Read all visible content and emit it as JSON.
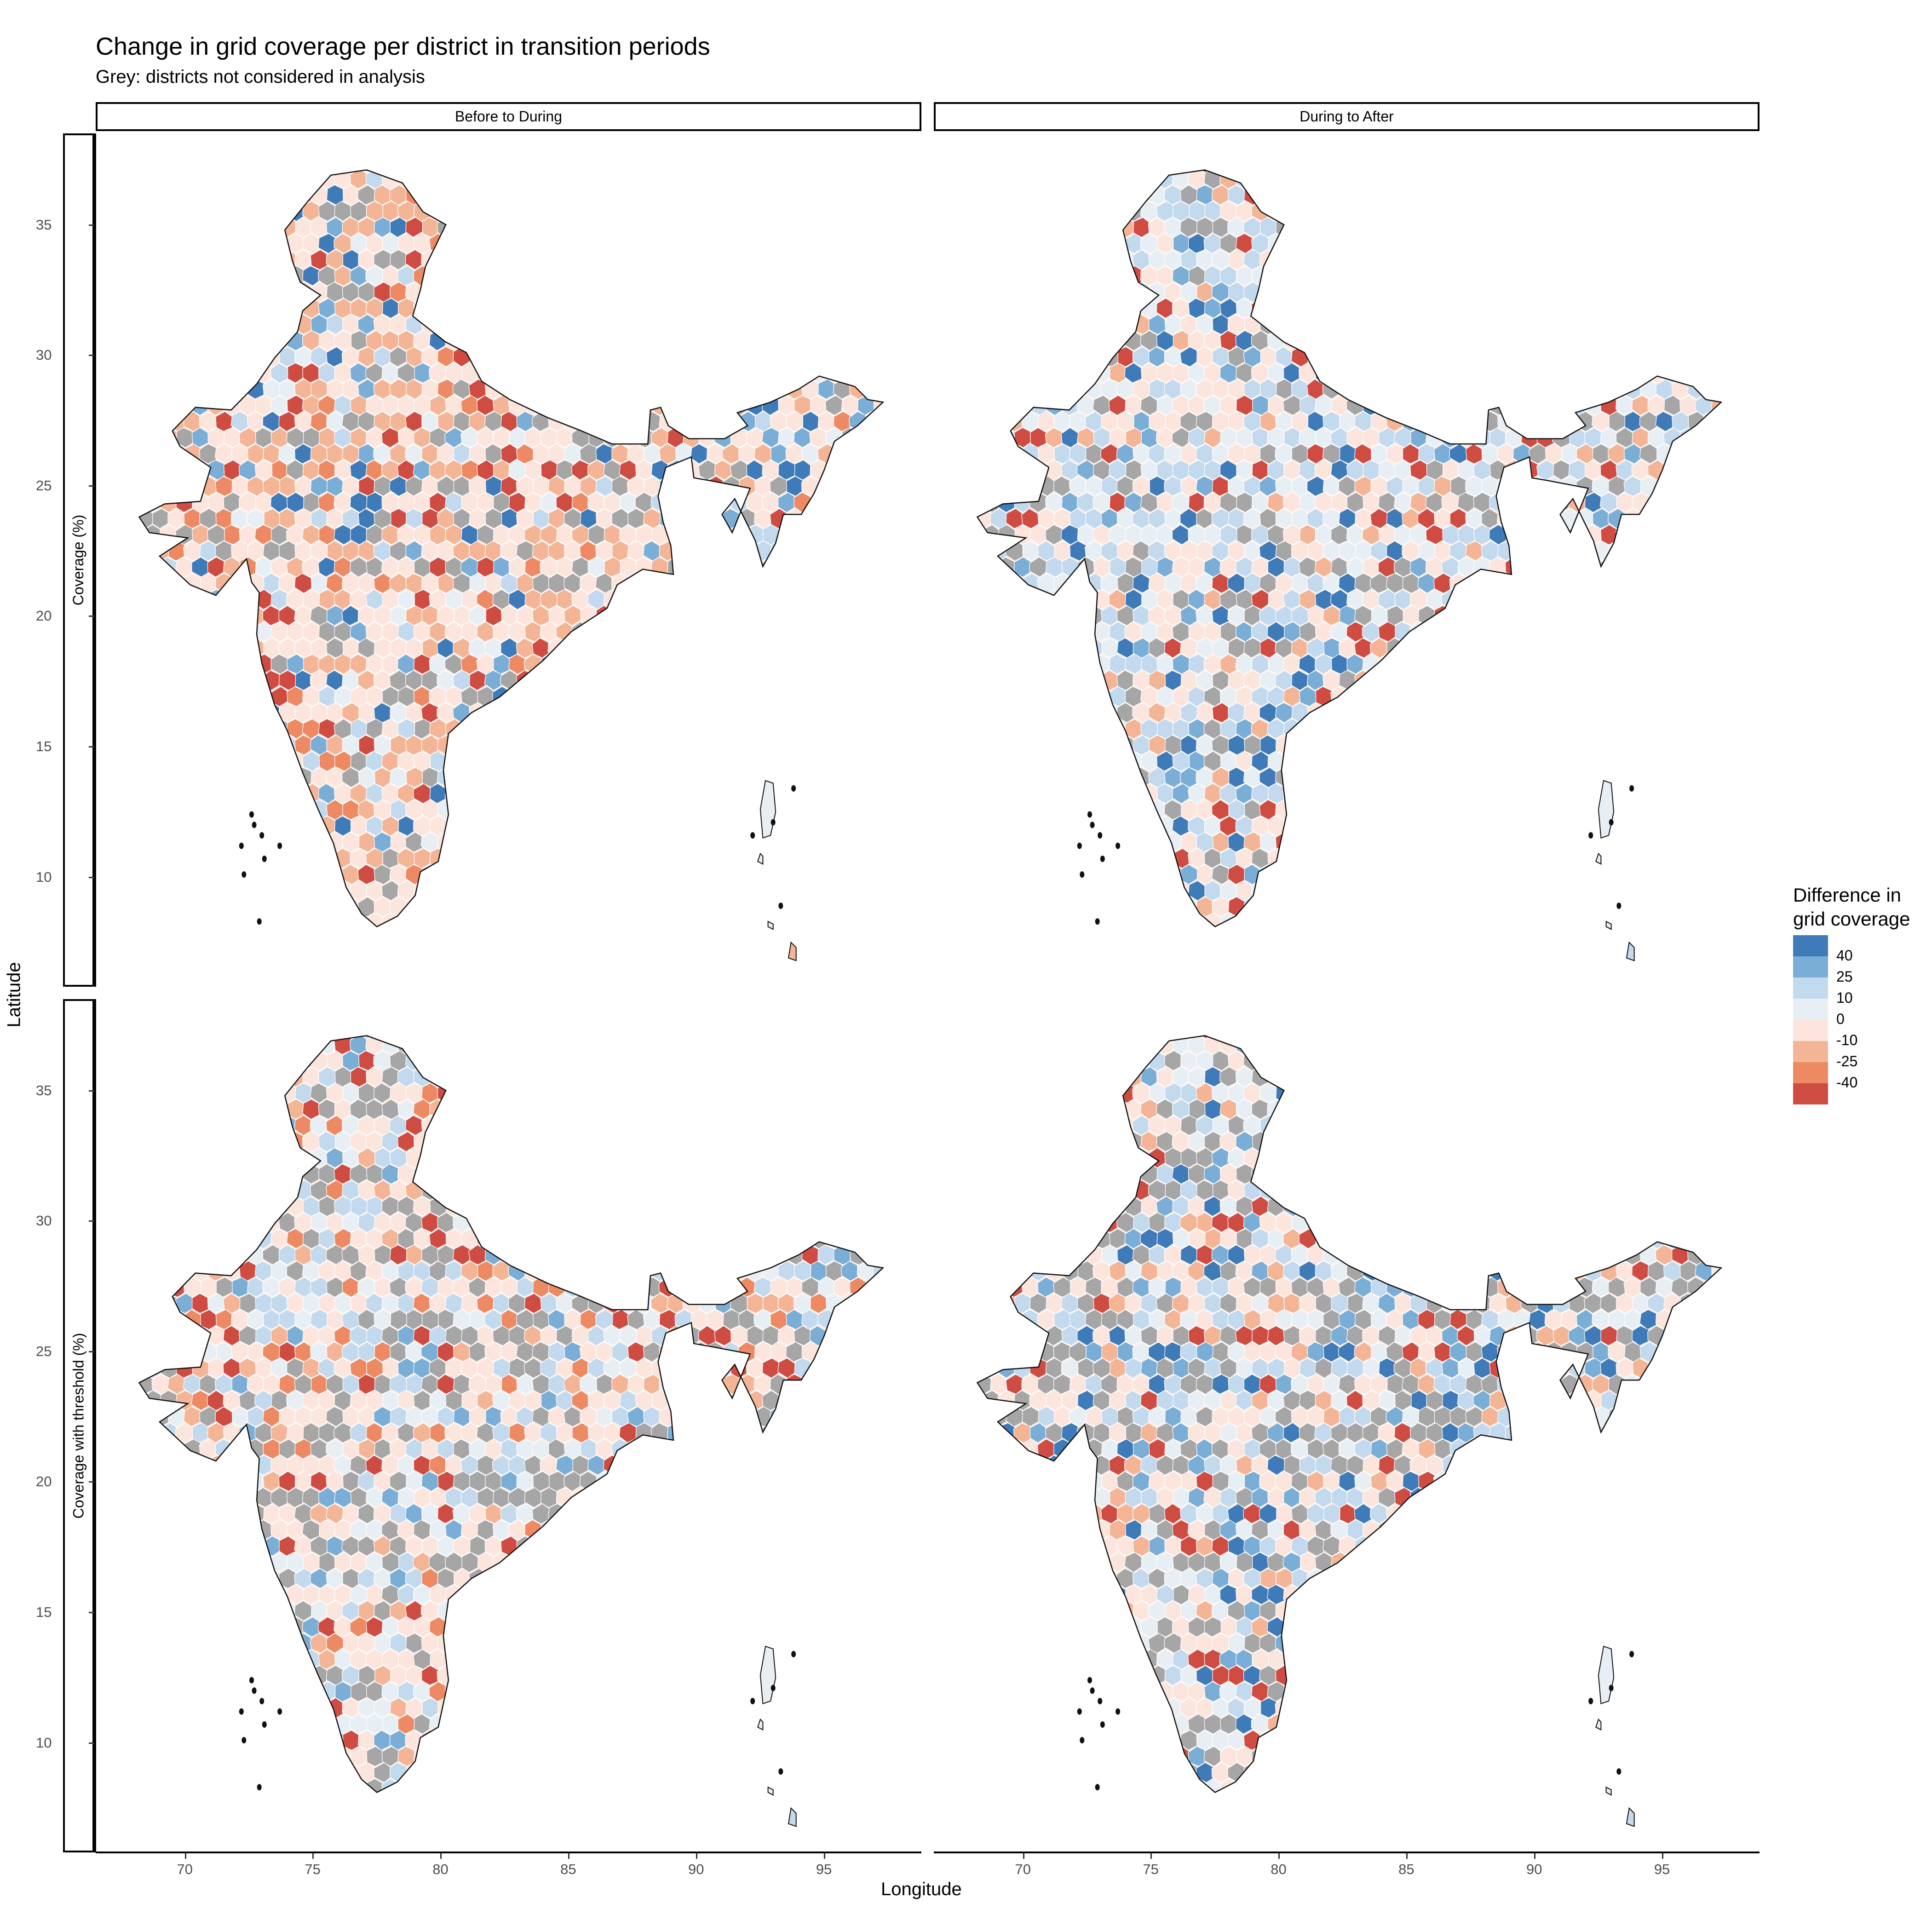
{
  "title": "Change in grid coverage per district in transition periods",
  "subtitle": "Grey: districts not considered in analysis",
  "facets": {
    "columns": [
      "Before to During",
      "During to After"
    ],
    "rows": [
      "Coverage (%)",
      "Coverage with threshold (%)"
    ]
  },
  "axes": {
    "x_label": "Longitude",
    "y_label": "Latitude",
    "x_ticks": [
      "70",
      "75",
      "80",
      "85",
      "90",
      "95"
    ],
    "y_ticks": [
      "35",
      "30",
      "25",
      "20",
      "15",
      "10"
    ],
    "x_range": [
      66.5,
      98.8
    ],
    "y_range": [
      5.8,
      38.5
    ]
  },
  "legend": {
    "title_line1": "Difference in",
    "title_line2": "grid coverage",
    "items": [
      {
        "label": "40",
        "color": "#3f7ab9"
      },
      {
        "label": "25",
        "color": "#7aaed6"
      },
      {
        "label": "10",
        "color": "#c3d9ed"
      },
      {
        "label": "0",
        "color": "#e8eff4"
      },
      {
        "label": "-10",
        "color": "#fbe5dc"
      },
      {
        "label": "-25",
        "color": "#f4b596"
      },
      {
        "label": "-40",
        "color": "#ed8a64"
      },
      {
        "label": "",
        "color": "#cf4c43"
      }
    ]
  },
  "colors": {
    "excluded": "#a6a6a6",
    "outline": "#111111"
  }
}
